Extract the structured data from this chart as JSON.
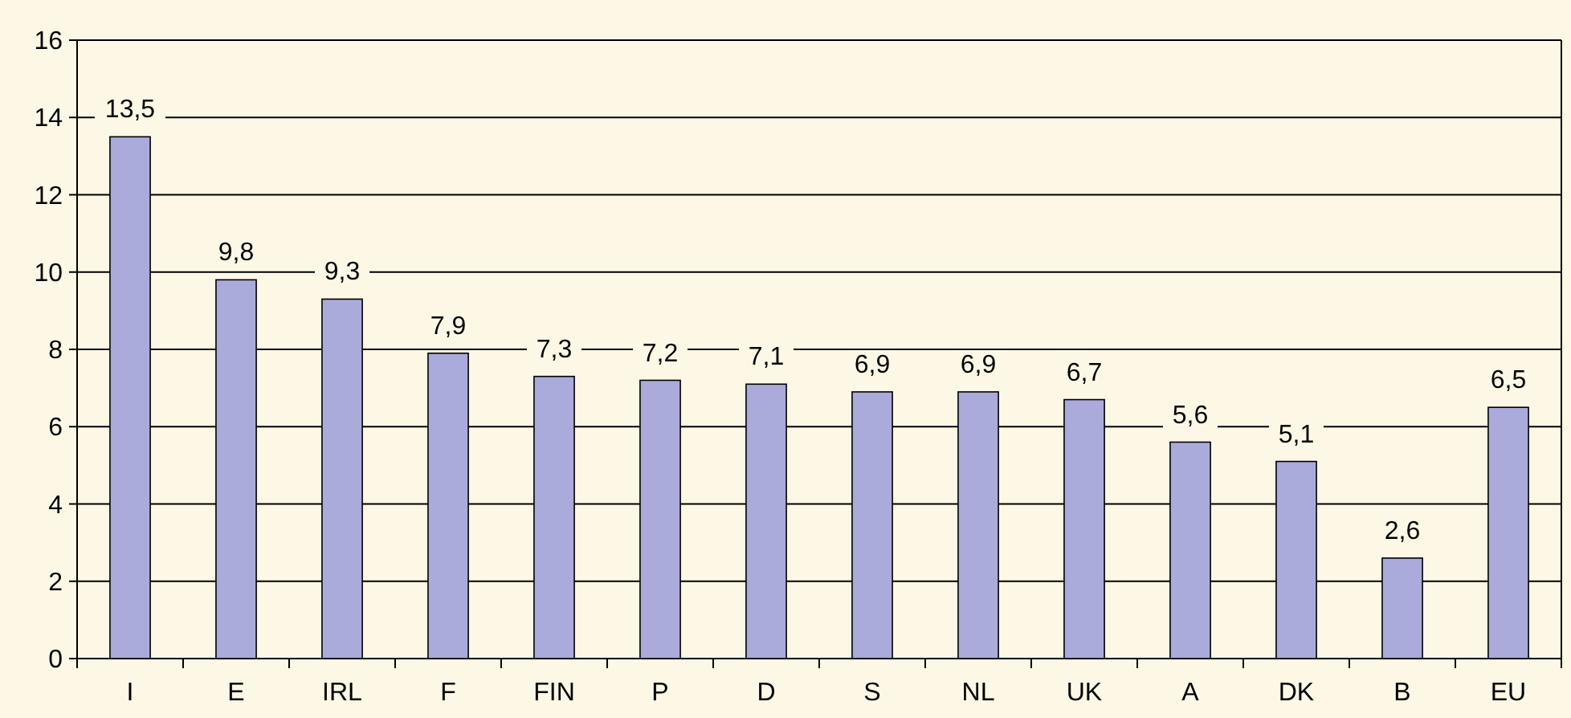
{
  "chart_data": {
    "type": "bar",
    "categories": [
      "I",
      "E",
      "IRL",
      "F",
      "FIN",
      "P",
      "D",
      "S",
      "NL",
      "UK",
      "A",
      "DK",
      "B",
      "EU"
    ],
    "values": [
      13.5,
      9.8,
      9.3,
      7.9,
      7.3,
      7.2,
      7.1,
      6.9,
      6.9,
      6.7,
      5.6,
      5.1,
      2.6,
      6.5
    ],
    "value_labels": [
      "13,5",
      "9,8",
      "9,3",
      "7,9",
      "7,3",
      "7,2",
      "7,1",
      "6,9",
      "6,9",
      "6,7",
      "5,6",
      "5,1",
      "2,6",
      "6,5"
    ],
    "color": "#aaaadb",
    "ylim": [
      0,
      16
    ],
    "yticks": [
      0,
      2,
      4,
      6,
      8,
      10,
      12,
      14,
      16
    ],
    "grid": "y"
  }
}
